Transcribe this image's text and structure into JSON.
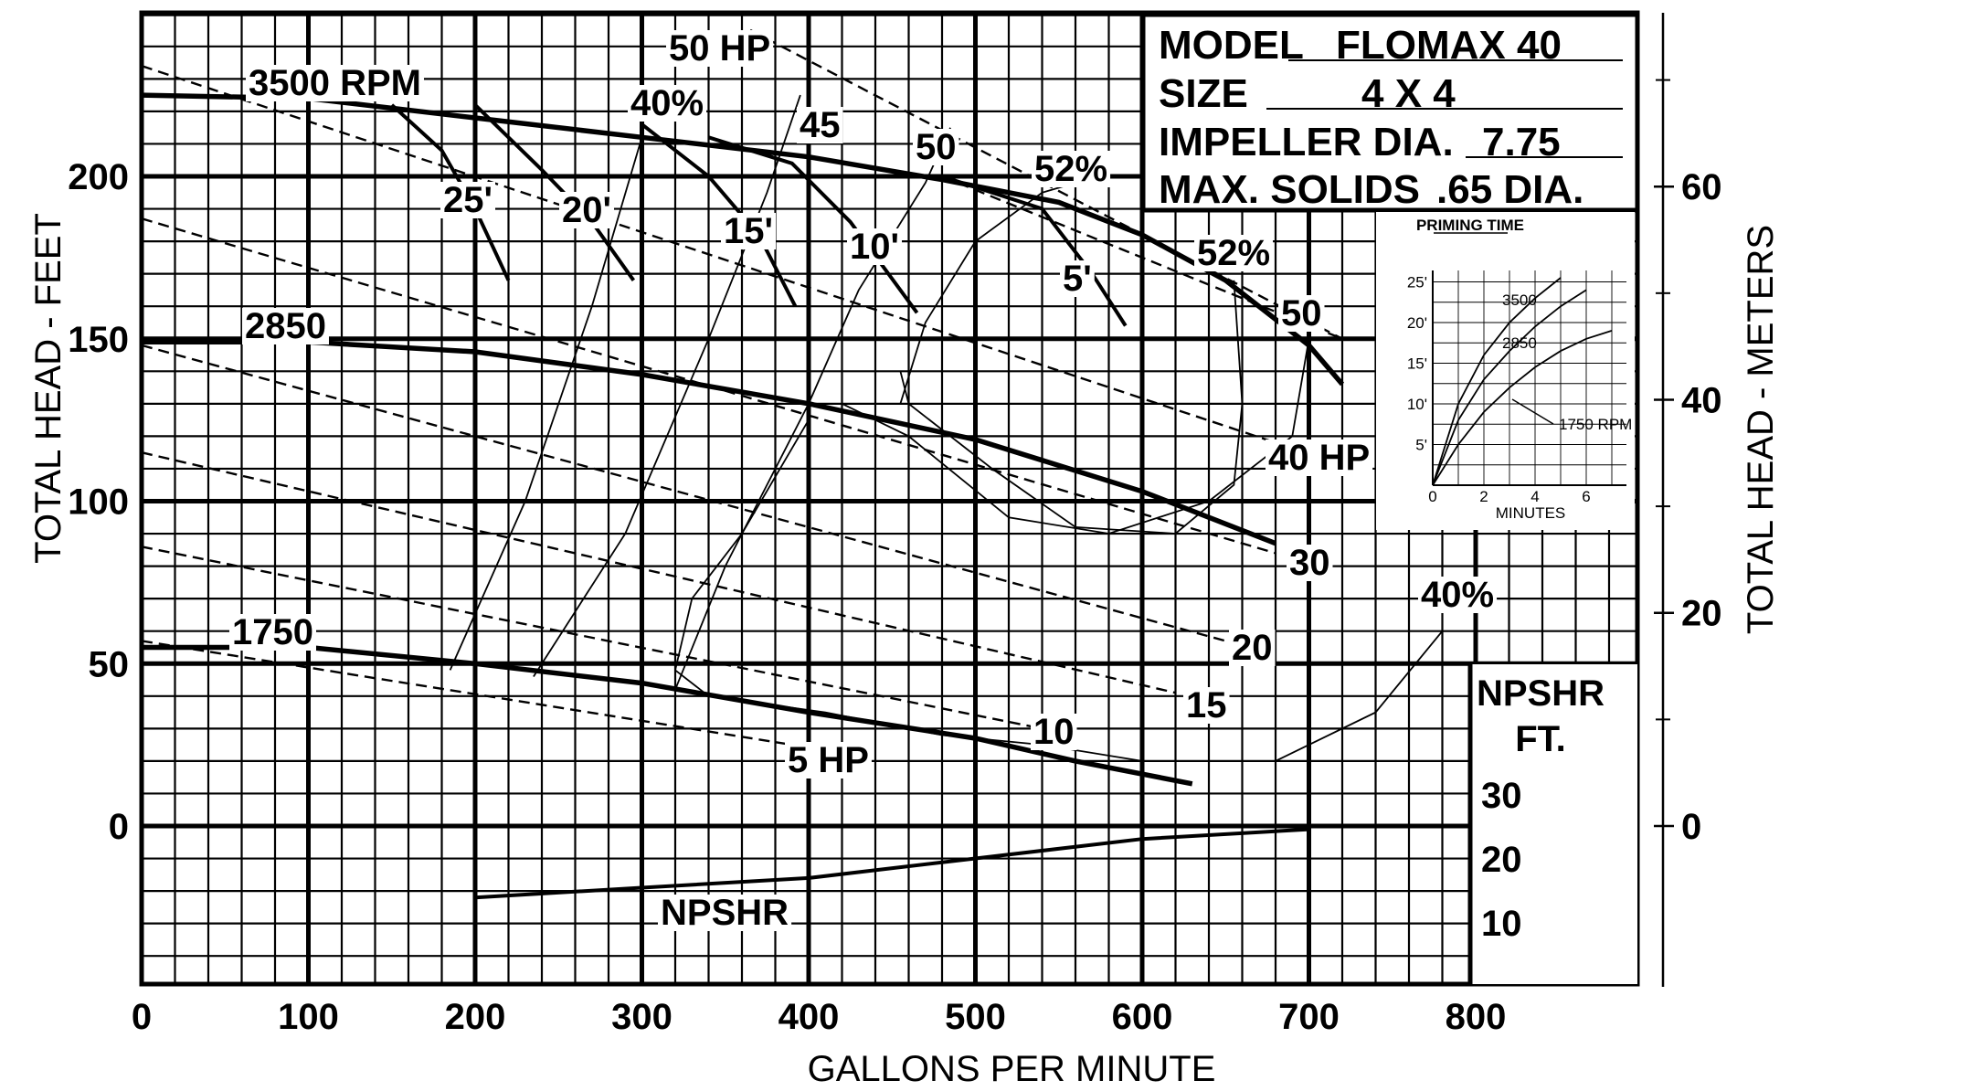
{
  "chart_data": {
    "type": "line",
    "title": "",
    "xlabel": "GALLONS PER MINUTE",
    "ylabel": "TOTAL HEAD - FEET",
    "y2label": "TOTAL HEAD - METERS",
    "xlim": [
      0,
      900
    ],
    "ylim": [
      -50,
      250
    ],
    "x_ticks": [
      0,
      100,
      200,
      300,
      400,
      500,
      600,
      700,
      800
    ],
    "y_ticks": [
      0,
      50,
      100,
      150,
      200
    ],
    "y2_ticks": [
      0,
      20,
      40,
      60
    ],
    "grid": true,
    "info_box": {
      "rows": [
        {
          "label": "MODEL",
          "value": "FLOMAX 40"
        },
        {
          "label": "SIZE",
          "value": "4 X 4"
        },
        {
          "label": "IMPELLER DIA.",
          "value": "7.75"
        },
        {
          "label": "MAX. SOLIDS",
          "value": ".65 DIA."
        }
      ]
    },
    "speed_curves": [
      {
        "name": "3500 RPM",
        "points": [
          [
            0,
            225
          ],
          [
            100,
            224
          ],
          [
            200,
            218
          ],
          [
            300,
            212
          ],
          [
            400,
            206
          ],
          [
            480,
            199
          ],
          [
            550,
            192
          ],
          [
            600,
            182
          ],
          [
            650,
            168
          ],
          [
            700,
            148
          ],
          [
            720,
            136
          ]
        ]
      },
      {
        "name": "2850",
        "points": [
          [
            0,
            149
          ],
          [
            100,
            149
          ],
          [
            200,
            146
          ],
          [
            300,
            139
          ],
          [
            400,
            130
          ],
          [
            500,
            119
          ],
          [
            600,
            103
          ],
          [
            680,
            87
          ]
        ]
      },
      {
        "name": "1750",
        "points": [
          [
            0,
            55
          ],
          [
            100,
            55
          ],
          [
            200,
            50
          ],
          [
            300,
            44
          ],
          [
            400,
            35
          ],
          [
            500,
            27
          ],
          [
            560,
            20
          ],
          [
            630,
            13
          ]
        ]
      }
    ],
    "horsepower_lines": [
      {
        "name": "50 HP",
        "points": [
          [
            365,
            245
          ],
          [
            720,
            150
          ]
        ]
      },
      {
        "name": "50",
        "points": [
          [
            480,
            200
          ],
          [
            720,
            150
          ]
        ]
      },
      {
        "name": "40 HP",
        "points": [
          [
            0,
            234
          ],
          [
            680,
            118
          ]
        ]
      },
      {
        "name": "30",
        "points": [
          [
            0,
            187
          ],
          [
            680,
            84
          ]
        ]
      },
      {
        "name": "20",
        "points": [
          [
            0,
            148
          ],
          [
            650,
            57
          ]
        ]
      },
      {
        "name": "15",
        "points": [
          [
            0,
            115
          ],
          [
            620,
            41
          ]
        ]
      },
      {
        "name": "10",
        "points": [
          [
            0,
            86
          ],
          [
            540,
            30
          ]
        ]
      },
      {
        "name": "5 HP",
        "points": [
          [
            0,
            57
          ],
          [
            390,
            25
          ]
        ]
      }
    ],
    "npsh_contours": [
      {
        "name": "25'",
        "points": [
          [
            150,
            222
          ],
          [
            180,
            208
          ],
          [
            200,
            190
          ],
          [
            220,
            168
          ]
        ]
      },
      {
        "name": "20'",
        "points": [
          [
            200,
            222
          ],
          [
            240,
            202
          ],
          [
            270,
            186
          ],
          [
            295,
            168
          ]
        ]
      },
      {
        "name": "15'",
        "points": [
          [
            300,
            216
          ],
          [
            340,
            200
          ],
          [
            370,
            182
          ],
          [
            392,
            160
          ]
        ]
      },
      {
        "name": "10'",
        "points": [
          [
            340,
            212
          ],
          [
            390,
            204
          ],
          [
            425,
            186
          ],
          [
            465,
            158
          ]
        ]
      },
      {
        "name": "5'",
        "points": [
          [
            480,
            200
          ],
          [
            540,
            190
          ],
          [
            570,
            170
          ],
          [
            590,
            154
          ]
        ]
      }
    ],
    "efficiency_contours": [
      {
        "name": "40%",
        "points": [
          [
            185,
            48
          ],
          [
            230,
            100
          ],
          [
            270,
            160
          ],
          [
            300,
            212
          ]
        ]
      },
      {
        "name": "45",
        "points": [
          [
            235,
            46
          ],
          [
            290,
            90
          ],
          [
            340,
            150
          ],
          [
            375,
            195
          ],
          [
            395,
            225
          ]
        ]
      },
      {
        "name": "50",
        "points": [
          [
            320,
            42
          ],
          [
            350,
            80
          ],
          [
            400,
            130
          ],
          [
            430,
            165
          ],
          [
            470,
            198
          ],
          [
            485,
            215
          ]
        ]
      },
      {
        "name": "52%",
        "points": [
          [
            455,
            130
          ],
          [
            470,
            155
          ],
          [
            500,
            180
          ],
          [
            540,
            195
          ],
          [
            560,
            198
          ]
        ]
      },
      {
        "name": "52%",
        "points": [
          [
            655,
            168
          ],
          [
            660,
            130
          ],
          [
            655,
            105
          ],
          [
            620,
            90
          ],
          [
            560,
            92
          ],
          [
            510,
            110
          ],
          [
            460,
            130
          ],
          [
            455,
            140
          ]
        ]
      },
      {
        "name": "50",
        "points": [
          [
            700,
            150
          ],
          [
            690,
            120
          ],
          [
            640,
            100
          ],
          [
            580,
            90
          ],
          [
            520,
            95
          ],
          [
            460,
            120
          ],
          [
            420,
            130
          ]
        ]
      },
      {
        "name": "40%",
        "points": [
          [
            780,
            60
          ],
          [
            740,
            35
          ],
          [
            680,
            20
          ],
          [
            600,
            20
          ],
          [
            540,
            25
          ],
          [
            480,
            28
          ],
          [
            410,
            35
          ],
          [
            340,
            40
          ],
          [
            320,
            48
          ],
          [
            330,
            70
          ],
          [
            360,
            90
          ],
          [
            400,
            125
          ]
        ]
      }
    ],
    "npshr": {
      "name": "NPSHR",
      "axis_title": [
        "NPSHR",
        "FT."
      ],
      "axis_ticks": [
        "30",
        "20",
        "10"
      ],
      "points": [
        [
          200,
          -22
        ],
        [
          300,
          -19
        ],
        [
          400,
          -16
        ],
        [
          500,
          -10
        ],
        [
          600,
          -4
        ],
        [
          700,
          -1
        ]
      ]
    },
    "inset": {
      "title": "PRIMING TIME",
      "xlabel": "MINUTES",
      "x_ticks": [
        "0",
        "2",
        "4",
        "6"
      ],
      "y_ticks": [
        "5'",
        "10'",
        "15'",
        "20'",
        "25'"
      ],
      "series": [
        {
          "name": "3500",
          "points": [
            [
              0,
              0
            ],
            [
              1,
              10
            ],
            [
              2,
              16
            ],
            [
              3,
              20
            ],
            [
              4,
              23
            ],
            [
              5,
              25.5
            ]
          ]
        },
        {
          "name": "2850",
          "points": [
            [
              0,
              0
            ],
            [
              1,
              8
            ],
            [
              2,
              13
            ],
            [
              3,
              16.5
            ],
            [
              4,
              19.5
            ],
            [
              5,
              22
            ],
            [
              6,
              24
            ]
          ]
        },
        {
          "name": "1750 RPM",
          "points": [
            [
              0,
              0
            ],
            [
              1,
              5
            ],
            [
              2,
              9
            ],
            [
              3,
              12
            ],
            [
              4,
              14.5
            ],
            [
              5,
              16.5
            ],
            [
              6,
              18
            ],
            [
              7,
              19
            ]
          ]
        }
      ]
    }
  }
}
